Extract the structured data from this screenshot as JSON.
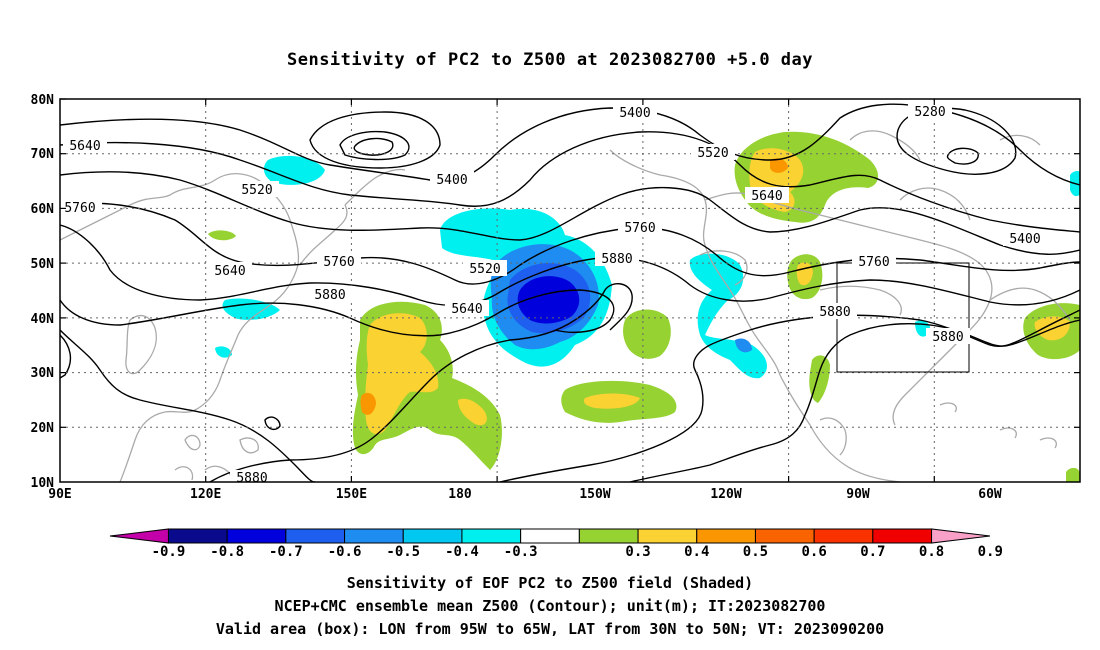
{
  "title": "Sensitivity of PC2 to Z500 at 2023082700 +5.0 day",
  "y_axis": [
    "80N",
    "70N",
    "60N",
    "50N",
    "40N",
    "30N",
    "20N",
    "10N"
  ],
  "x_axis": [
    "90E",
    "120E",
    "150E",
    "180",
    "150W",
    "120W",
    "90W",
    "60W"
  ],
  "contour_labels": [
    "5400",
    "5280",
    "5640",
    "5520",
    "5520",
    "5400",
    "5760",
    "5760",
    "5640",
    "5760",
    "5520",
    "5880",
    "5880",
    "5640",
    "5640",
    "5400",
    "5760",
    "5880",
    "5880",
    "5880"
  ],
  "colorbar": {
    "labels": [
      "-0.9",
      "-0.8",
      "-0.7",
      "-0.6",
      "-0.5",
      "-0.4",
      "-0.3",
      "0.3",
      "0.4",
      "0.5",
      "0.6",
      "0.7",
      "0.8",
      "0.9"
    ],
    "colors": [
      "#c400a8",
      "#0a0a8c",
      "#0000dc",
      "#1e5ff0",
      "#1e8cf0",
      "#00c8f0",
      "#00f0f0",
      "#ffffff",
      "#96d232",
      "#fad232",
      "#fa9600",
      "#fa6400",
      "#fa3200",
      "#f00000",
      "#f8a0c8"
    ]
  },
  "captions": [
    "Sensitivity of EOF PC2 to Z500 field (Shaded)",
    "NCEP+CMC ensemble mean Z500 (Contour); unit(m); IT:2023082700",
    "Valid area (box): LON from 95W to 65W, LAT from 30N to 50N; VT: 2023090200"
  ]
}
